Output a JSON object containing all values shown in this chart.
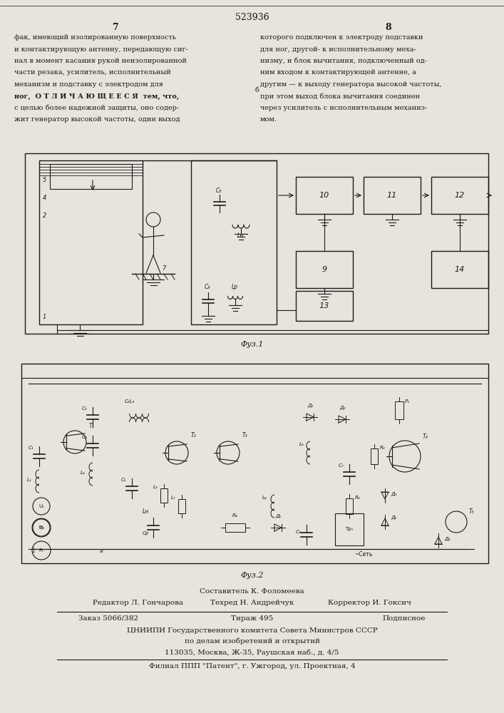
{
  "page_number": "523936",
  "page_left_num": "7",
  "page_right_num": "8",
  "bg_color": "#e8e4dc",
  "text_color": "#1a1a1a",
  "col_left_lines": [
    "фак, имеющий изолированную поверхность",
    "и контактирующую антенну, передающую сиг-",
    "нал в момент касания рукой неизолированной",
    "части резака, усилитель, исполнительный",
    "механизм и подставку с электродом для",
    "ног,  О Т Л И Ч А Ю Щ Е Е С Я  тем, что,",
    "с целью более надежной защиты, оно содер-",
    "жит генератор высокой частоты, один выход"
  ],
  "col_right_lines": [
    "которого подключен к электроду подставки",
    "для ног, другой- к исполнительному меха-",
    "низму, и блок вычитания, подключенный од-",
    "ним входом к контактирующей антенне, а",
    "другим — к выходу генератора высокой частоты,",
    "при этом выход блока вычитания соединен",
    "через усилитель с исполнительным механиз-",
    "мом."
  ],
  "fig1_label": "Фуз.1",
  "fig2_label": "Фуз.2",
  "footer": [
    "Составитель К. Фоломеева",
    "Редактор Л. Гончарова",
    "Техред Н. Андрейчук",
    "Корректор И. Гоксич",
    "Заказ 5066/382",
    "Тираж 495",
    "Подписное",
    "ЦНИИПИ Государственного комитета Совета Министров СССР",
    "по делам изобретений и открытий",
    "113035, Москва, Ж-35, Раушская наб., д. 4/5",
    "Филиал ППП \"Патент\", г. Ужгород, ул. Проектная, 4"
  ]
}
